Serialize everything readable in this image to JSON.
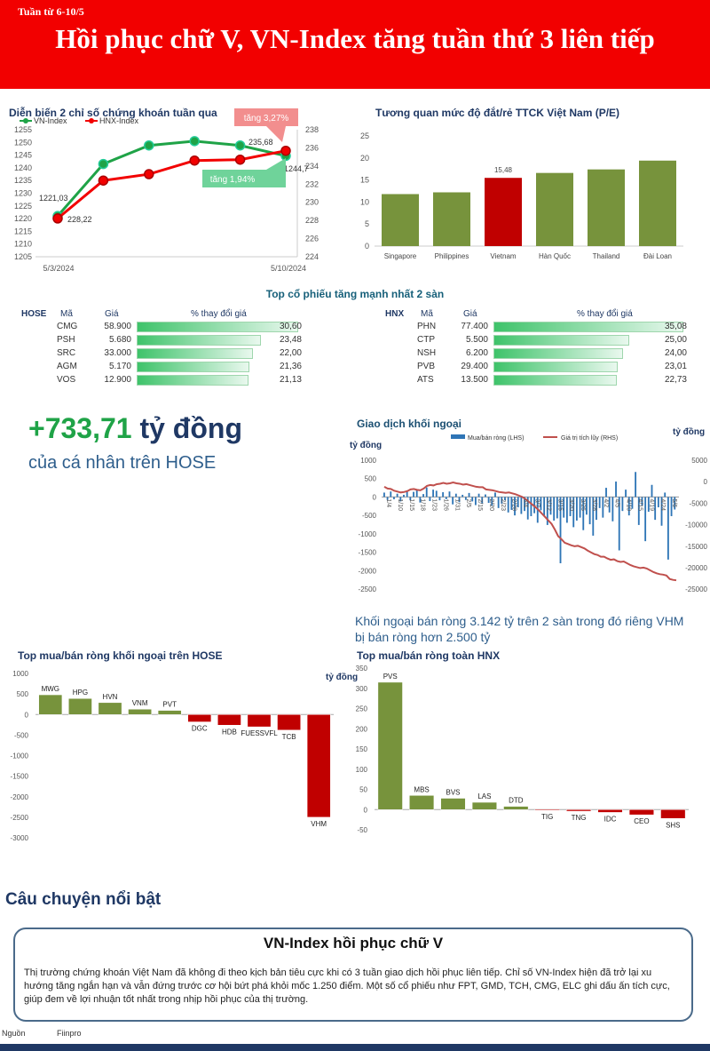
{
  "banner": {
    "week": "Tuần từ 6-10/5",
    "headline": "Hồi phục chữ V, VN-Index tăng tuần thứ 3 liên tiếp"
  },
  "colors": {
    "red": "#f20000",
    "green": "#1fa347",
    "navy": "#1f3864",
    "olive": "#77933c",
    "bar_red": "#c00000"
  },
  "chart_data": [
    {
      "id": "index",
      "type": "line",
      "title": "Diễn biến 2 chỉ số chứng khoán tuần qua",
      "legend": [
        "VN-Index",
        "HNX-Index"
      ],
      "x_labels": [
        "5/3/2024",
        "5/10/2024"
      ],
      "series": [
        {
          "name": "VN-Index",
          "axis": "left",
          "color": "#1fa347",
          "values": [
            1221.03,
            1241.5,
            1248.8,
            1250.5,
            1248.8,
            1244.7
          ]
        },
        {
          "name": "HNX-Index",
          "axis": "right",
          "color": "#f20000",
          "values": [
            228.22,
            232.4,
            233.1,
            234.6,
            234.7,
            235.68
          ]
        }
      ],
      "left_axis": {
        "min": 1205,
        "max": 1255,
        "step": 5
      },
      "right_axis": {
        "min": 224,
        "max": 238,
        "step": 2
      },
      "data_labels": {
        "vn_first": "1221,03",
        "hnx_first": "228,22",
        "hnx_last": "235,68",
        "vn_last": "1244,7"
      },
      "callouts": {
        "hnx": "tăng 3,27%",
        "vn": "tăng 1,94%"
      }
    },
    {
      "id": "pe",
      "type": "bar",
      "title": "Tương quan mức độ đắt/rẻ TTCK Việt Nam (P/E)",
      "categories": [
        "Singapore",
        "Philippines",
        "Vietnam",
        "Hàn Quốc",
        "Thailand",
        "Đài Loan"
      ],
      "values": [
        11.8,
        12.2,
        15.48,
        16.6,
        17.4,
        19.4
      ],
      "highlight": "Vietnam",
      "label": "15,48",
      "ylim": [
        0,
        25
      ],
      "ticks": [
        "0",
        "5",
        "10",
        "15",
        "20",
        "25"
      ]
    },
    {
      "id": "foreign",
      "type": "bar+line",
      "title": "Giao dịch khối ngoại",
      "unit_left": "tỷ đồng",
      "unit_right": "tỷ đồng",
      "legend": [
        "Mua/bán ròng (LHS)",
        "Giá trị tích lũy (RHS)"
      ],
      "left_ticks": [
        "1000",
        "500",
        "0",
        "-500",
        "-1000",
        "-1500",
        "-2000",
        "-2500"
      ],
      "right_ticks": [
        "5000",
        "0",
        "-5000",
        "-10000",
        "-15000",
        "-20000",
        "-25000"
      ],
      "x_labels": [
        "1/4",
        "1/10",
        "1/15",
        "1/18",
        "1/23",
        "1/26",
        "1/31",
        "2/5",
        "2/15",
        "2/20",
        "2/23",
        "2/28",
        "3/4",
        "3/7",
        "3/12",
        "3/15",
        "3/20",
        "3/25",
        "3/28",
        "4/2",
        "4/5",
        "4/10",
        "4/15",
        "4/19",
        "4/24",
        "5/6"
      ],
      "left_range": [
        -2500,
        1000
      ],
      "right_range": [
        -25000,
        5000
      ],
      "net": [
        120,
        -80,
        150,
        -60,
        90,
        -120,
        60,
        180,
        -90,
        140,
        210,
        -150,
        80,
        260,
        -110,
        200,
        170,
        -90,
        130,
        -60,
        150,
        -200,
        90,
        -140,
        60,
        -80,
        110,
        -120,
        -220,
        90,
        -180,
        70,
        -160,
        -240,
        120,
        -300,
        -180,
        -90,
        -420,
        -350,
        -500,
        -280,
        -460,
        -380,
        -610,
        -520,
        -440,
        -700,
        -360,
        -520,
        -760,
        -480,
        -640,
        -580,
        -1800,
        -560,
        -700,
        -520,
        -820,
        -640,
        -560,
        -900,
        -480,
        -740,
        -1050,
        -620,
        -300,
        -560,
        250,
        -420,
        -660,
        420,
        -1450,
        -380,
        200,
        -500,
        -320,
        680,
        -760,
        -240,
        -1200,
        -400,
        330,
        -620,
        -280,
        -780,
        120,
        -1700,
        -520,
        -340
      ],
      "cumulative": [
        -1200,
        -1600,
        -1700,
        -2100,
        -2300,
        -2500,
        -2400,
        -2200,
        -1800,
        -1700,
        -1900,
        -2000,
        -1600,
        -1000,
        -800,
        -900,
        -600,
        -500,
        -300,
        -500,
        -400,
        -200,
        -400,
        -500,
        -700,
        -600,
        -800,
        -1000,
        -1200,
        -1300,
        -1300,
        -1800,
        -1900,
        -2000,
        -2200,
        -2400,
        -2500,
        -2600,
        -2500,
        -2700,
        -2900,
        -3200,
        -3500,
        -4000,
        -4600,
        -5200,
        -5800,
        -6500,
        -7300,
        -8100,
        -8900,
        -9700,
        -11000,
        -12500,
        -13200,
        -14000,
        -14300,
        -14600,
        -14800,
        -14700,
        -15000,
        -15300,
        -15800,
        -16200,
        -16600,
        -16800,
        -17200,
        -17200,
        -17600,
        -17900,
        -17800,
        -18200,
        -18400,
        -18300,
        -18700,
        -19100,
        -19400,
        -19600,
        -19800,
        -19700,
        -19900,
        -20300,
        -20700,
        -21000,
        -21200,
        -21300,
        -21500,
        -22300,
        -22500,
        -22600
      ]
    },
    {
      "id": "hose_foreign",
      "type": "bar",
      "title": "Top mua/bán ròng khối ngoại trên HOSE",
      "unit": "tỷ đồng",
      "categories": [
        "MWG",
        "HPG",
        "HVN",
        "VNM",
        "PVT",
        "DGC",
        "HDB",
        "FUESSVFL",
        "TCB",
        "VHM"
      ],
      "values": [
        480,
        390,
        290,
        130,
        100,
        -180,
        -260,
        -300,
        -380,
        -2500
      ],
      "ylim": [
        -3000,
        1000
      ],
      "ticks": [
        "1000",
        "500",
        "0",
        "-500",
        "-1000",
        "-1500",
        "-2000",
        "-2500",
        "-3000"
      ]
    },
    {
      "id": "hnx_foreign",
      "type": "bar",
      "title": "Top mua/bán ròng toàn HNX",
      "categories": [
        "PVS",
        "MBS",
        "BVS",
        "LAS",
        "DTD",
        "TIG",
        "TNG",
        "IDC",
        "CEO",
        "SHS"
      ],
      "values": [
        315,
        35,
        28,
        18,
        8,
        -2,
        -4,
        -7,
        -13,
        -22
      ],
      "ylim": [
        -50,
        350
      ],
      "ticks": [
        "350",
        "300",
        "250",
        "200",
        "150",
        "100",
        "50",
        "0",
        "-50"
      ]
    }
  ],
  "gainers": {
    "title": "Top cổ phiếu tăng mạnh nhất 2 sàn",
    "hose": {
      "exchange": "HOSE",
      "col_code": "Mã",
      "col_price": "Giá",
      "col_change": "% thay đổi giá",
      "rows": [
        {
          "code": "CMG",
          "price": "58.900",
          "change": "30,60",
          "pct": 30.6
        },
        {
          "code": "PSH",
          "price": "5.680",
          "change": "23,48",
          "pct": 23.48
        },
        {
          "code": "SRC",
          "price": "33.000",
          "change": "22,00",
          "pct": 22.0
        },
        {
          "code": "AGM",
          "price": "5.170",
          "change": "21,36",
          "pct": 21.36
        },
        {
          "code": "VOS",
          "price": "12.900",
          "change": "21,13",
          "pct": 21.13
        }
      ]
    },
    "hnx": {
      "exchange": "HNX",
      "col_code": "Mã",
      "col_price": "Giá",
      "col_change": "% thay đổi giá",
      "rows": [
        {
          "code": "PHN",
          "price": "77.400",
          "change": "35,08",
          "pct": 35.08
        },
        {
          "code": "CTP",
          "price": "5.500",
          "change": "25,00",
          "pct": 25.0
        },
        {
          "code": "NSH",
          "price": "6.200",
          "change": "24,00",
          "pct": 24.0
        },
        {
          "code": "PVB",
          "price": "29.400",
          "change": "23,01",
          "pct": 23.01
        },
        {
          "code": "ATS",
          "price": "13.500",
          "change": "22,73",
          "pct": 22.73
        }
      ]
    }
  },
  "highlight": {
    "amount": "+733,71",
    "unit": " tỷ đồng",
    "subtitle": "của cá nhân trên HOSE"
  },
  "foreign_note": "Khối ngoại bán ròng 3.142 tỷ trên 2 sàn trong đó riêng VHM bị bán ròng hơn 2.500 tỷ",
  "story": {
    "section_title": "Câu chuyện nổi bật",
    "title": "VN-Index hồi phục chữ V",
    "body": "Thị trường chứng khoán Việt Nam đã không đi theo kịch bản tiêu cực khi có 3 tuần giao dịch hồi phục liên tiếp. Chỉ số VN-Index hiện đã trở lại xu hướng tăng ngắn hạn và vẫn đứng trước cơ hội bứt phá khỏi mốc 1.250 điểm. Một số cổ phiếu như FPT, GMD, TCH, CMG, ELC ghi dấu ấn tích cực, giúp đem về lợi nhuận tốt nhất trong nhịp hồi phục của thị trường."
  },
  "footer": {
    "source_label": "Nguồn",
    "source_value": "Fiinpro"
  }
}
